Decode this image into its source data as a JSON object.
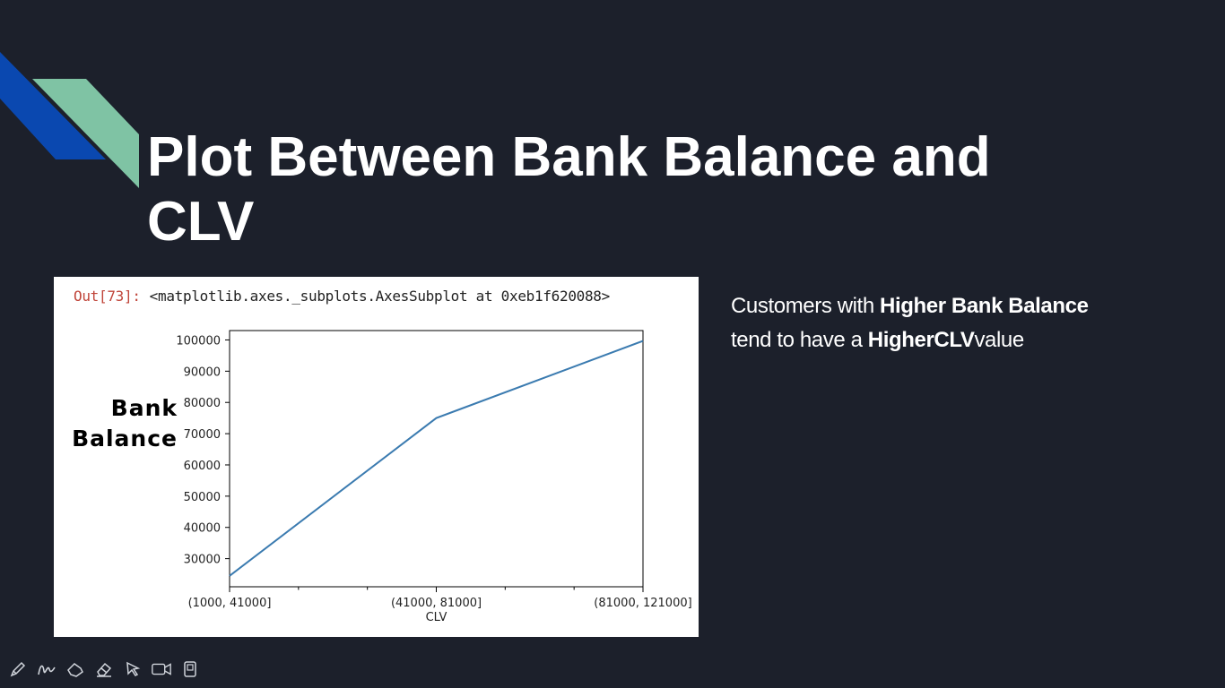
{
  "slide": {
    "title_line1": "Plot Between Bank Balance and",
    "title_line2": "CLV",
    "accent_colors": {
      "blue": "#0a48b0",
      "green": "#7fc3a4",
      "background": "#1c202b"
    }
  },
  "notebook": {
    "out_prompt": "Out[73]:",
    "out_repr": "<matplotlib.axes._subplots.AxesSubplot at 0xeb1f620088>"
  },
  "overlay_label": {
    "line1": "Bank",
    "line2": "Balance"
  },
  "chart_data": {
    "type": "line",
    "title": "",
    "xlabel": "CLV",
    "ylabel": "",
    "categories": [
      "(1000, 41000]",
      "(41000, 81000]",
      "(81000, 121000]"
    ],
    "series": [
      {
        "values": [
          24500,
          75000,
          99700
        ],
        "color": "#3b7bb0"
      }
    ],
    "ylim": [
      21000,
      103000
    ],
    "yticks": [
      30000,
      40000,
      50000,
      60000,
      70000,
      80000,
      90000,
      100000
    ],
    "grid": false,
    "legend": "none"
  },
  "side_text": {
    "p1": "Customers with ",
    "b1": "Higher  Bank Balance",
    "p2": "tend to  have a ",
    "b2": "HigherCLV",
    "p3": "value"
  },
  "toolbar": {
    "tools": [
      "pen-icon",
      "highlighter-icon",
      "eraser-icon",
      "eraser-alt-icon",
      "pointer-icon",
      "video-icon",
      "notes-icon"
    ]
  }
}
